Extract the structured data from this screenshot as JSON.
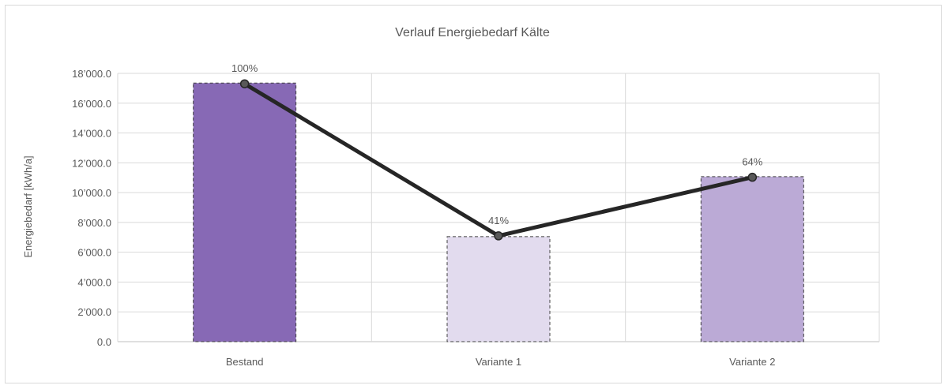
{
  "chart_data": {
    "type": "bar",
    "title": "Verlauf Energiebedarf Kälte",
    "xlabel": "",
    "ylabel": "Energiebedarf [kWh/a]",
    "categories": [
      "Bestand",
      "Variante 1",
      "Variante 2"
    ],
    "values": [
      17350,
      7050,
      11070
    ],
    "bar_colors": [
      "#8769b5",
      "#e2dbee",
      "#bbaad6"
    ],
    "line": {
      "values": [
        17300,
        7100,
        11030
      ],
      "labels": [
        "100%",
        "41%",
        "64%"
      ],
      "color": "#262626"
    },
    "ylim": [
      0,
      18000
    ],
    "yticks": [
      0,
      2000,
      4000,
      6000,
      8000,
      10000,
      12000,
      14000,
      16000,
      18000
    ],
    "ytick_labels": [
      "0.0",
      "2’000.0",
      "4’000.0",
      "6’000.0",
      "8’000.0",
      "10’000.0",
      "12’000.0",
      "14’000.0",
      "16’000.0",
      "18’000.0"
    ],
    "grid": true,
    "legend": "none"
  }
}
